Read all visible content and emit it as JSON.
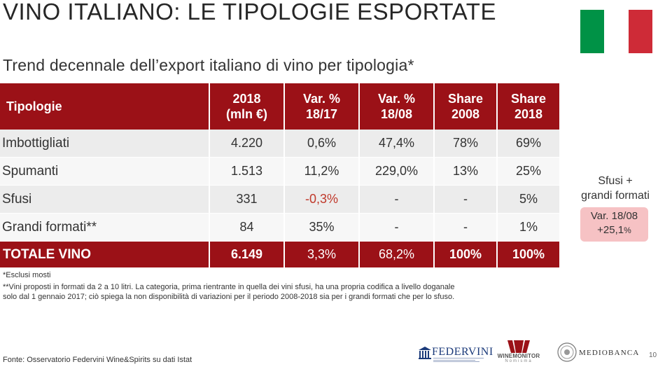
{
  "slide": {
    "title": "VINO ITALIANO: LE TIPOLOGIE ESPORTATE",
    "subtitle": "Trend decennale dell’export italiano di vino per tipologia*",
    "page_number": "10"
  },
  "flag": {
    "colors": [
      "#009246",
      "#ffffff",
      "#ce2b37"
    ]
  },
  "colors": {
    "header_bg": "#9b1117",
    "negative": "#c0392b",
    "highlight_box": "#f6c2c4"
  },
  "table": {
    "headers": [
      {
        "line1": "Tipologie",
        "line2": ""
      },
      {
        "line1": "2018",
        "line2": "(mln €)"
      },
      {
        "line1": "Var. %",
        "line2": "18/17"
      },
      {
        "line1": "Var. %",
        "line2": "18/08"
      },
      {
        "line1": "Share",
        "line2": "2008"
      },
      {
        "line1": "Share",
        "line2": "2018"
      }
    ],
    "rows": [
      [
        "Imbottigliati",
        "4.220",
        "0,6%",
        "47,4%",
        "78%",
        "69%"
      ],
      [
        "Spumanti",
        "1.513",
        "11,2%",
        "229,0%",
        "13%",
        "25%"
      ],
      [
        "Sfusi",
        "331",
        "-0,3%",
        "-",
        "-",
        "5%"
      ],
      [
        "Grandi formati**",
        "84",
        "35%",
        "-",
        "-",
        "1%"
      ]
    ],
    "total": [
      "TOTALE VINO",
      "6.149",
      "3,3%",
      "68,2%",
      "100%",
      "100%"
    ]
  },
  "side_note": {
    "label_line1": "Sfusi +",
    "label_line2": "grandi formati",
    "var_label": "Var. 18/08",
    "var_value": "+25,1",
    "var_unit": "%"
  },
  "footnotes": {
    "note1": "*Esclusi mosti",
    "note2": "**Vini proposti in formati da 2 a 10 litri. La categoria, prima rientrante in quella dei vini sfusi, ha una propria codifica a livello doganale solo dal 1 gennaio 2017; ciò spiega la non disponibilità di variazioni per il periodo 2008-2018 sia per i grandi formati che per lo sfuso."
  },
  "source": "Fonte: Osservatorio Federvini Wine&Spirits su dati Istat",
  "logos": {
    "federvini": "FEDERVINI",
    "winemonitor": "WINEMONITOR",
    "winemonitor_sub": "Nomisma",
    "mediobanca": "MEDIOBANCA"
  }
}
